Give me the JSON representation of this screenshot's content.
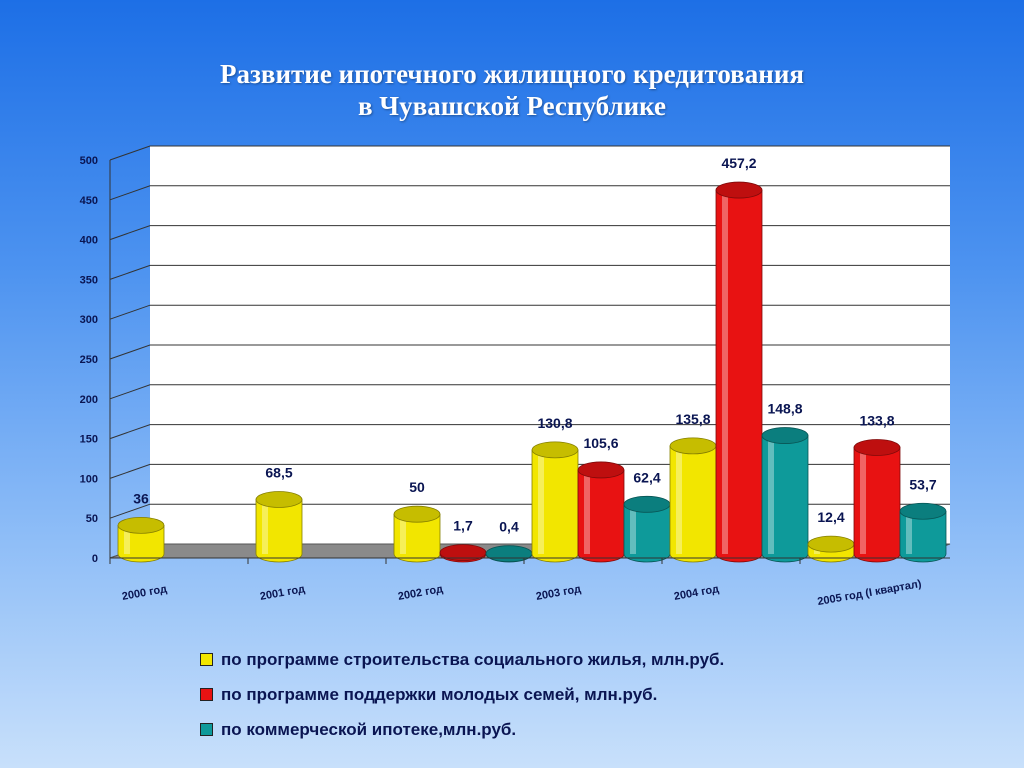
{
  "title": {
    "line1": "Развитие ипотечного жилищного кредитования",
    "line2": "в Чувашской Республике"
  },
  "chart_data": {
    "type": "bar",
    "style": "3d-cylinder",
    "categories": [
      "2000 год",
      "2001 год",
      "2002 год",
      "2003 год",
      "2004 год",
      "2005 год (I квартал)"
    ],
    "series": [
      {
        "name": "по программе строительства социального жилья, млн.руб.",
        "color": "#f2e600",
        "values": [
          36,
          68.5,
          50,
          130.8,
          135.8,
          12.4
        ],
        "labels": [
          "36",
          "68,5",
          "50",
          "130,8",
          "135,8",
          "12,4"
        ]
      },
      {
        "name": "по программе поддержки молодых семей, млн.руб.",
        "color": "#e81212",
        "values": [
          null,
          null,
          1.7,
          105.6,
          457.2,
          133.8
        ],
        "labels": [
          null,
          null,
          "1,7",
          "105,6",
          "457,2",
          "133,8"
        ]
      },
      {
        "name": "по коммерческой ипотеке,млн.руб.",
        "color": "#0e9a9a",
        "values": [
          null,
          null,
          0.4,
          62.4,
          148.8,
          53.7
        ],
        "labels": [
          null,
          null,
          "0,4",
          "62,4",
          "148,8",
          "53,7"
        ]
      }
    ],
    "ylim": [
      0,
      500
    ],
    "yticks": [
      "0",
      "50",
      "100",
      "150",
      "200",
      "250",
      "300",
      "350",
      "400",
      "450",
      "500"
    ],
    "grid": true,
    "legend_position": "bottom"
  }
}
